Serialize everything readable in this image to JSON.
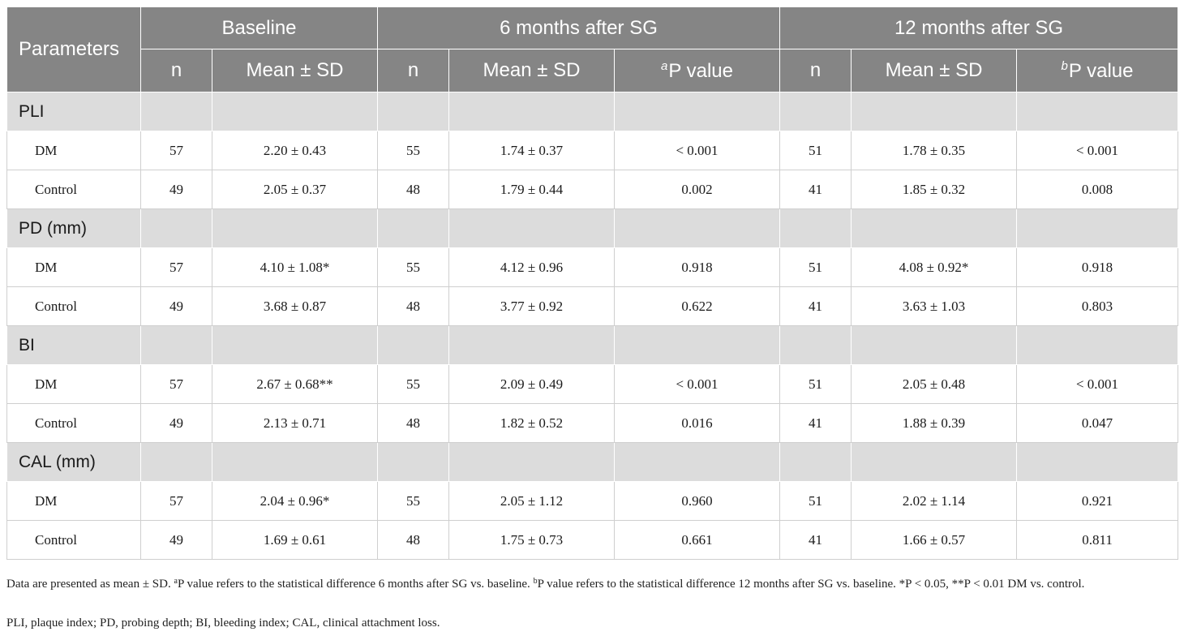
{
  "table": {
    "head": {
      "parameters": "Parameters",
      "baseline": "Baseline",
      "m6": "6 months after SG",
      "m12": "12 months after SG",
      "n": "n",
      "mean_sd": "Mean ± SD",
      "p_a_sup": "a",
      "p_b_sup": "b",
      "p_label": "P value"
    },
    "groups": [
      {
        "label": "PLI",
        "rows": [
          {
            "label": "DM",
            "b_n": "57",
            "b_mean": "2.20 ± 0.43",
            "m6_n": "55",
            "m6_mean": "1.74 ± 0.37",
            "m6_p": "< 0.001",
            "m12_n": "51",
            "m12_mean": "1.78 ± 0.35",
            "m12_p": "< 0.001"
          },
          {
            "label": "Control",
            "b_n": "49",
            "b_mean": "2.05 ± 0.37",
            "m6_n": "48",
            "m6_mean": "1.79 ± 0.44",
            "m6_p": "0.002",
            "m12_n": "41",
            "m12_mean": "1.85 ± 0.32",
            "m12_p": "0.008"
          }
        ]
      },
      {
        "label": "PD (mm)",
        "rows": [
          {
            "label": "DM",
            "b_n": "57",
            "b_mean": "4.10 ± 1.08*",
            "m6_n": "55",
            "m6_mean": "4.12 ± 0.96",
            "m6_p": "0.918",
            "m12_n": "51",
            "m12_mean": "4.08 ± 0.92*",
            "m12_p": "0.918"
          },
          {
            "label": "Control",
            "b_n": "49",
            "b_mean": "3.68 ± 0.87",
            "m6_n": "48",
            "m6_mean": "3.77 ± 0.92",
            "m6_p": "0.622",
            "m12_n": "41",
            "m12_mean": "3.63 ± 1.03",
            "m12_p": "0.803"
          }
        ]
      },
      {
        "label": "BI",
        "rows": [
          {
            "label": "DM",
            "b_n": "57",
            "b_mean": "2.67 ± 0.68**",
            "m6_n": "55",
            "m6_mean": "2.09 ± 0.49",
            "m6_p": "< 0.001",
            "m12_n": "51",
            "m12_mean": "2.05 ± 0.48",
            "m12_p": "< 0.001"
          },
          {
            "label": "Control",
            "b_n": "49",
            "b_mean": "2.13 ± 0.71",
            "m6_n": "48",
            "m6_mean": "1.82 ± 0.52",
            "m6_p": "0.016",
            "m12_n": "41",
            "m12_mean": "1.88 ± 0.39",
            "m12_p": "0.047"
          }
        ]
      },
      {
        "label": "CAL (mm)",
        "rows": [
          {
            "label": "DM",
            "b_n": "57",
            "b_mean": "2.04 ± 0.96*",
            "m6_n": "55",
            "m6_mean": "2.05 ± 1.12",
            "m6_p": "0.960",
            "m12_n": "51",
            "m12_mean": "2.02 ± 1.14",
            "m12_p": "0.921"
          },
          {
            "label": "Control",
            "b_n": "49",
            "b_mean": "1.69 ± 0.61",
            "m6_n": "48",
            "m6_mean": "1.75 ± 0.73",
            "m6_p": "0.661",
            "m12_n": "41",
            "m12_mean": "1.66 ± 0.57",
            "m12_p": "0.811"
          }
        ]
      }
    ]
  },
  "footnotes": {
    "line1_start": "Data are presented as mean ± SD. ",
    "a_sup": "a",
    "line1_a_text": "P value refers to the statistical difference 6 months after SG vs. baseline. ",
    "b_sup": "b",
    "line1_b_text": "P value refers to the statistical difference 12 months after SG vs. baseline. *P < 0.05, **P < 0.01 DM vs. control.",
    "line2": "PLI, plaque index; PD, probing depth; BI, bleeding index; CAL, clinical attachment loss."
  },
  "colors": {
    "header_bg": "#858585",
    "group_row_bg": "#dcdcdc",
    "header_text": "#ffffff"
  }
}
